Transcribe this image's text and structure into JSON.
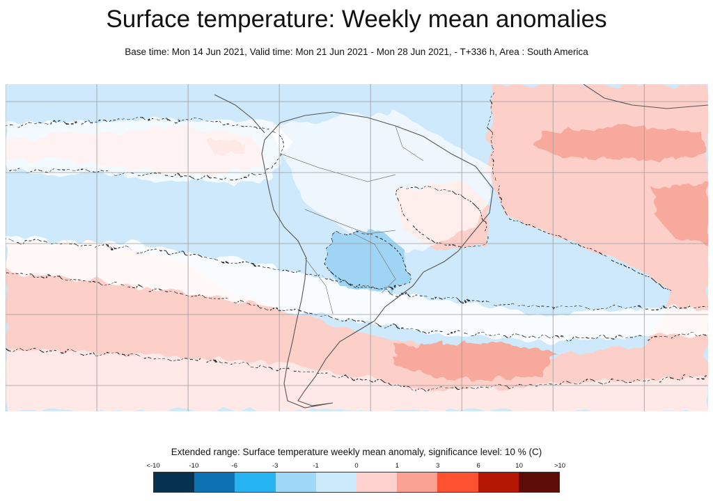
{
  "header": {
    "title": "Surface temperature: Weekly mean anomalies",
    "subtitle": "Base time: Mon 14 Jun 2021, Valid time: Mon 21 Jun 2021 - Mon 28 Jun 2021, - T+336 h, Area : South America"
  },
  "map": {
    "area": "South America",
    "variable": "Surface temperature weekly mean anomaly",
    "significance_contours": "dashed",
    "colors": {
      "neutral": "#ffffff",
      "cool": "#cde9fb",
      "cold": "#9fd4f5",
      "warm": "#fccfc9",
      "hot": "#f7a99b",
      "coast": "#555555",
      "grid": "#9a9a9a"
    }
  },
  "legend": {
    "title": "Extended range: Surface temperature weekly mean anomaly, significance level: 10 % (C)",
    "ticks": [
      "<-10",
      "-10",
      "-6",
      "-3",
      "-1",
      "0",
      "1",
      "3",
      "6",
      "10",
      ">10"
    ],
    "colors": [
      "#06324f",
      "#0e72b2",
      "#26b3f2",
      "#9dd8f9",
      "#cbeafc",
      "#fed1cf",
      "#f9a294",
      "#fc5232",
      "#b41703",
      "#5c0d06"
    ]
  }
}
